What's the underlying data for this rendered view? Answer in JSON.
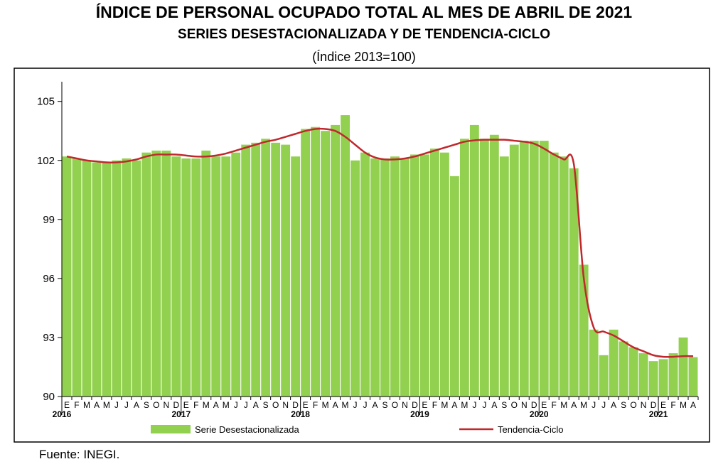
{
  "title": {
    "line1": "ÍNDICE DE PERSONAL OCUPADO TOTAL AL MES DE ABRIL DE 2021",
    "line2": "SERIES DESESTACIONALIZADA Y DE TENDENCIA-CICLO",
    "line3": "(Índice 2013=100)"
  },
  "source": "Fuente: INEGI.",
  "colors": {
    "bars": "#92d050",
    "trend": "#c0282d",
    "frame": "#000000"
  },
  "chart_data": {
    "type": "bar",
    "title": "ÍNDICE DE PERSONAL OCUPADO TOTAL AL MES DE ABRIL DE 2021",
    "subtitle": "SERIES DESESTACIONALIZADA Y DE TENDENCIA-CICLO",
    "xlabel": "",
    "ylabel": "",
    "ylim": [
      90,
      106
    ],
    "yticks": [
      90,
      93,
      96,
      99,
      102,
      105
    ],
    "grid": false,
    "legend_position": "bottom",
    "categories": [
      "E",
      "F",
      "M",
      "A",
      "M",
      "J",
      "J",
      "A",
      "S",
      "O",
      "N",
      "D",
      "E",
      "F",
      "M",
      "A",
      "M",
      "J",
      "J",
      "A",
      "S",
      "O",
      "N",
      "D",
      "E",
      "F",
      "M",
      "A",
      "M",
      "J",
      "J",
      "A",
      "S",
      "O",
      "N",
      "D",
      "E",
      "F",
      "M",
      "A",
      "M",
      "J",
      "J",
      "A",
      "S",
      "O",
      "N",
      "D",
      "E",
      "F",
      "M",
      "A",
      "M",
      "J",
      "J",
      "A",
      "S",
      "O",
      "N",
      "D",
      "E",
      "F",
      "M",
      "A"
    ],
    "years": [
      {
        "label": "2016",
        "start_index": 0
      },
      {
        "label": "2017",
        "start_index": 12
      },
      {
        "label": "2018",
        "start_index": 24
      },
      {
        "label": "2019",
        "start_index": 36
      },
      {
        "label": "2020",
        "start_index": 48
      },
      {
        "label": "2021",
        "start_index": 60
      }
    ],
    "series": [
      {
        "name": "Serie Desestacionalizada",
        "type": "bar",
        "values": [
          102.2,
          102.1,
          102.0,
          101.9,
          101.9,
          102.0,
          102.1,
          102.0,
          102.4,
          102.5,
          102.5,
          102.2,
          102.1,
          102.1,
          102.5,
          102.2,
          102.2,
          102.4,
          102.8,
          102.9,
          103.1,
          102.9,
          102.8,
          102.2,
          103.6,
          103.7,
          103.5,
          103.8,
          104.3,
          102.0,
          102.4,
          102.1,
          102.1,
          102.2,
          102.1,
          102.3,
          102.3,
          102.6,
          102.4,
          101.2,
          103.1,
          103.8,
          103.1,
          103.3,
          102.2,
          102.8,
          103.0,
          103.0,
          103.0,
          102.4,
          102.2,
          101.6,
          96.7,
          93.4,
          92.1,
          93.4,
          92.8,
          92.5,
          92.2,
          91.8,
          91.9,
          92.2,
          93.0,
          92.0
        ]
      },
      {
        "name": "Tendencia-Ciclo",
        "type": "line",
        "values": [
          102.2,
          102.1,
          102.0,
          101.95,
          101.9,
          101.9,
          101.95,
          102.05,
          102.2,
          102.3,
          102.3,
          102.3,
          102.25,
          102.2,
          102.2,
          102.25,
          102.35,
          102.5,
          102.65,
          102.8,
          102.95,
          103.05,
          103.2,
          103.35,
          103.5,
          103.6,
          103.6,
          103.5,
          103.2,
          102.8,
          102.4,
          102.15,
          102.05,
          102.05,
          102.1,
          102.2,
          102.35,
          102.5,
          102.65,
          102.8,
          102.95,
          103.02,
          103.05,
          103.05,
          103.05,
          103.0,
          102.95,
          102.85,
          102.6,
          102.3,
          102.05,
          101.8,
          96.0,
          93.5,
          93.3,
          93.1,
          92.8,
          92.5,
          92.3,
          92.1,
          92.02,
          92.02,
          92.05,
          92.05
        ]
      }
    ]
  }
}
